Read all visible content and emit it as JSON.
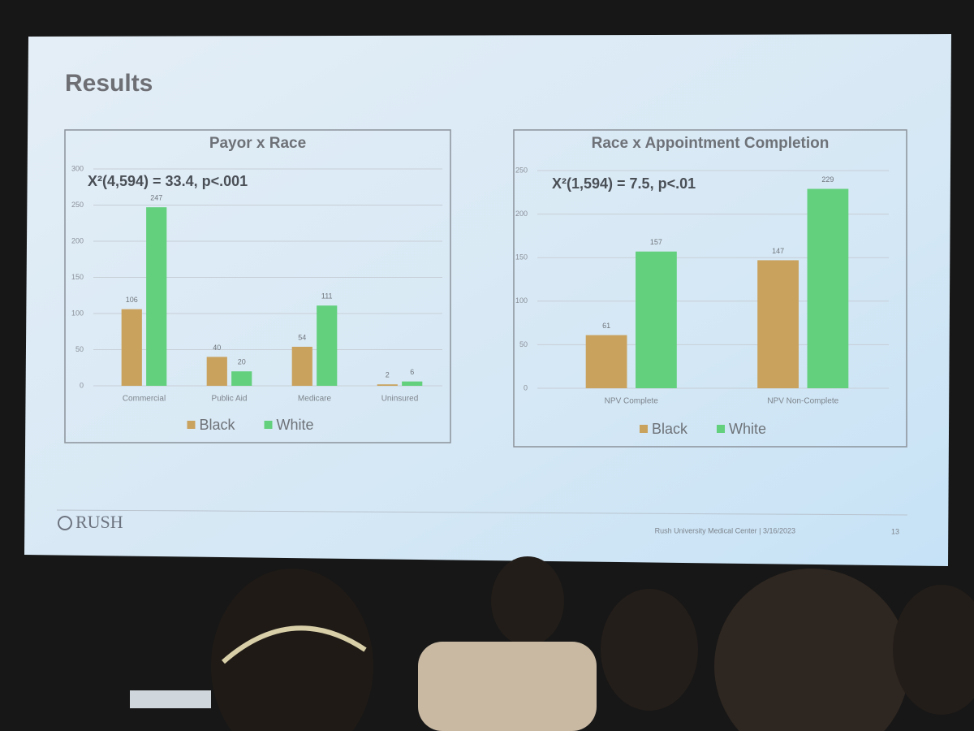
{
  "slide": {
    "title": "Results",
    "logo": "RUSH",
    "footer": "Rush University Medical Center  |  3/16/2023",
    "page_number": "13"
  },
  "chart_data": [
    {
      "type": "bar",
      "title": "Payor x Race",
      "annotation": "X²(4,594) = 33.4, p<.001",
      "categories": [
        "Commercial",
        "Public Aid",
        "Medicare",
        "Uninsured"
      ],
      "series": [
        {
          "name": "Black",
          "color": "#c9a25e",
          "values": [
            106,
            40,
            54,
            2
          ]
        },
        {
          "name": "White",
          "color": "#63d07e",
          "values": [
            247,
            20,
            111,
            6
          ]
        }
      ],
      "ylim": [
        0,
        300
      ],
      "yticks": [
        0,
        50,
        100,
        150,
        200,
        250,
        300
      ],
      "grid": true,
      "legend": "bottom"
    },
    {
      "type": "bar",
      "title": "Race x Appointment Completion",
      "annotation": "X²(1,594) = 7.5, p<.01",
      "categories": [
        "NPV Complete",
        "NPV Non-Complete"
      ],
      "series": [
        {
          "name": "Black",
          "color": "#c9a25e",
          "values": [
            61,
            147
          ]
        },
        {
          "name": "White",
          "color": "#63d07e",
          "values": [
            157,
            229
          ]
        }
      ],
      "ylim": [
        0,
        250
      ],
      "yticks": [
        0,
        50,
        100,
        150,
        200,
        250
      ],
      "grid": true,
      "legend": "bottom"
    }
  ]
}
